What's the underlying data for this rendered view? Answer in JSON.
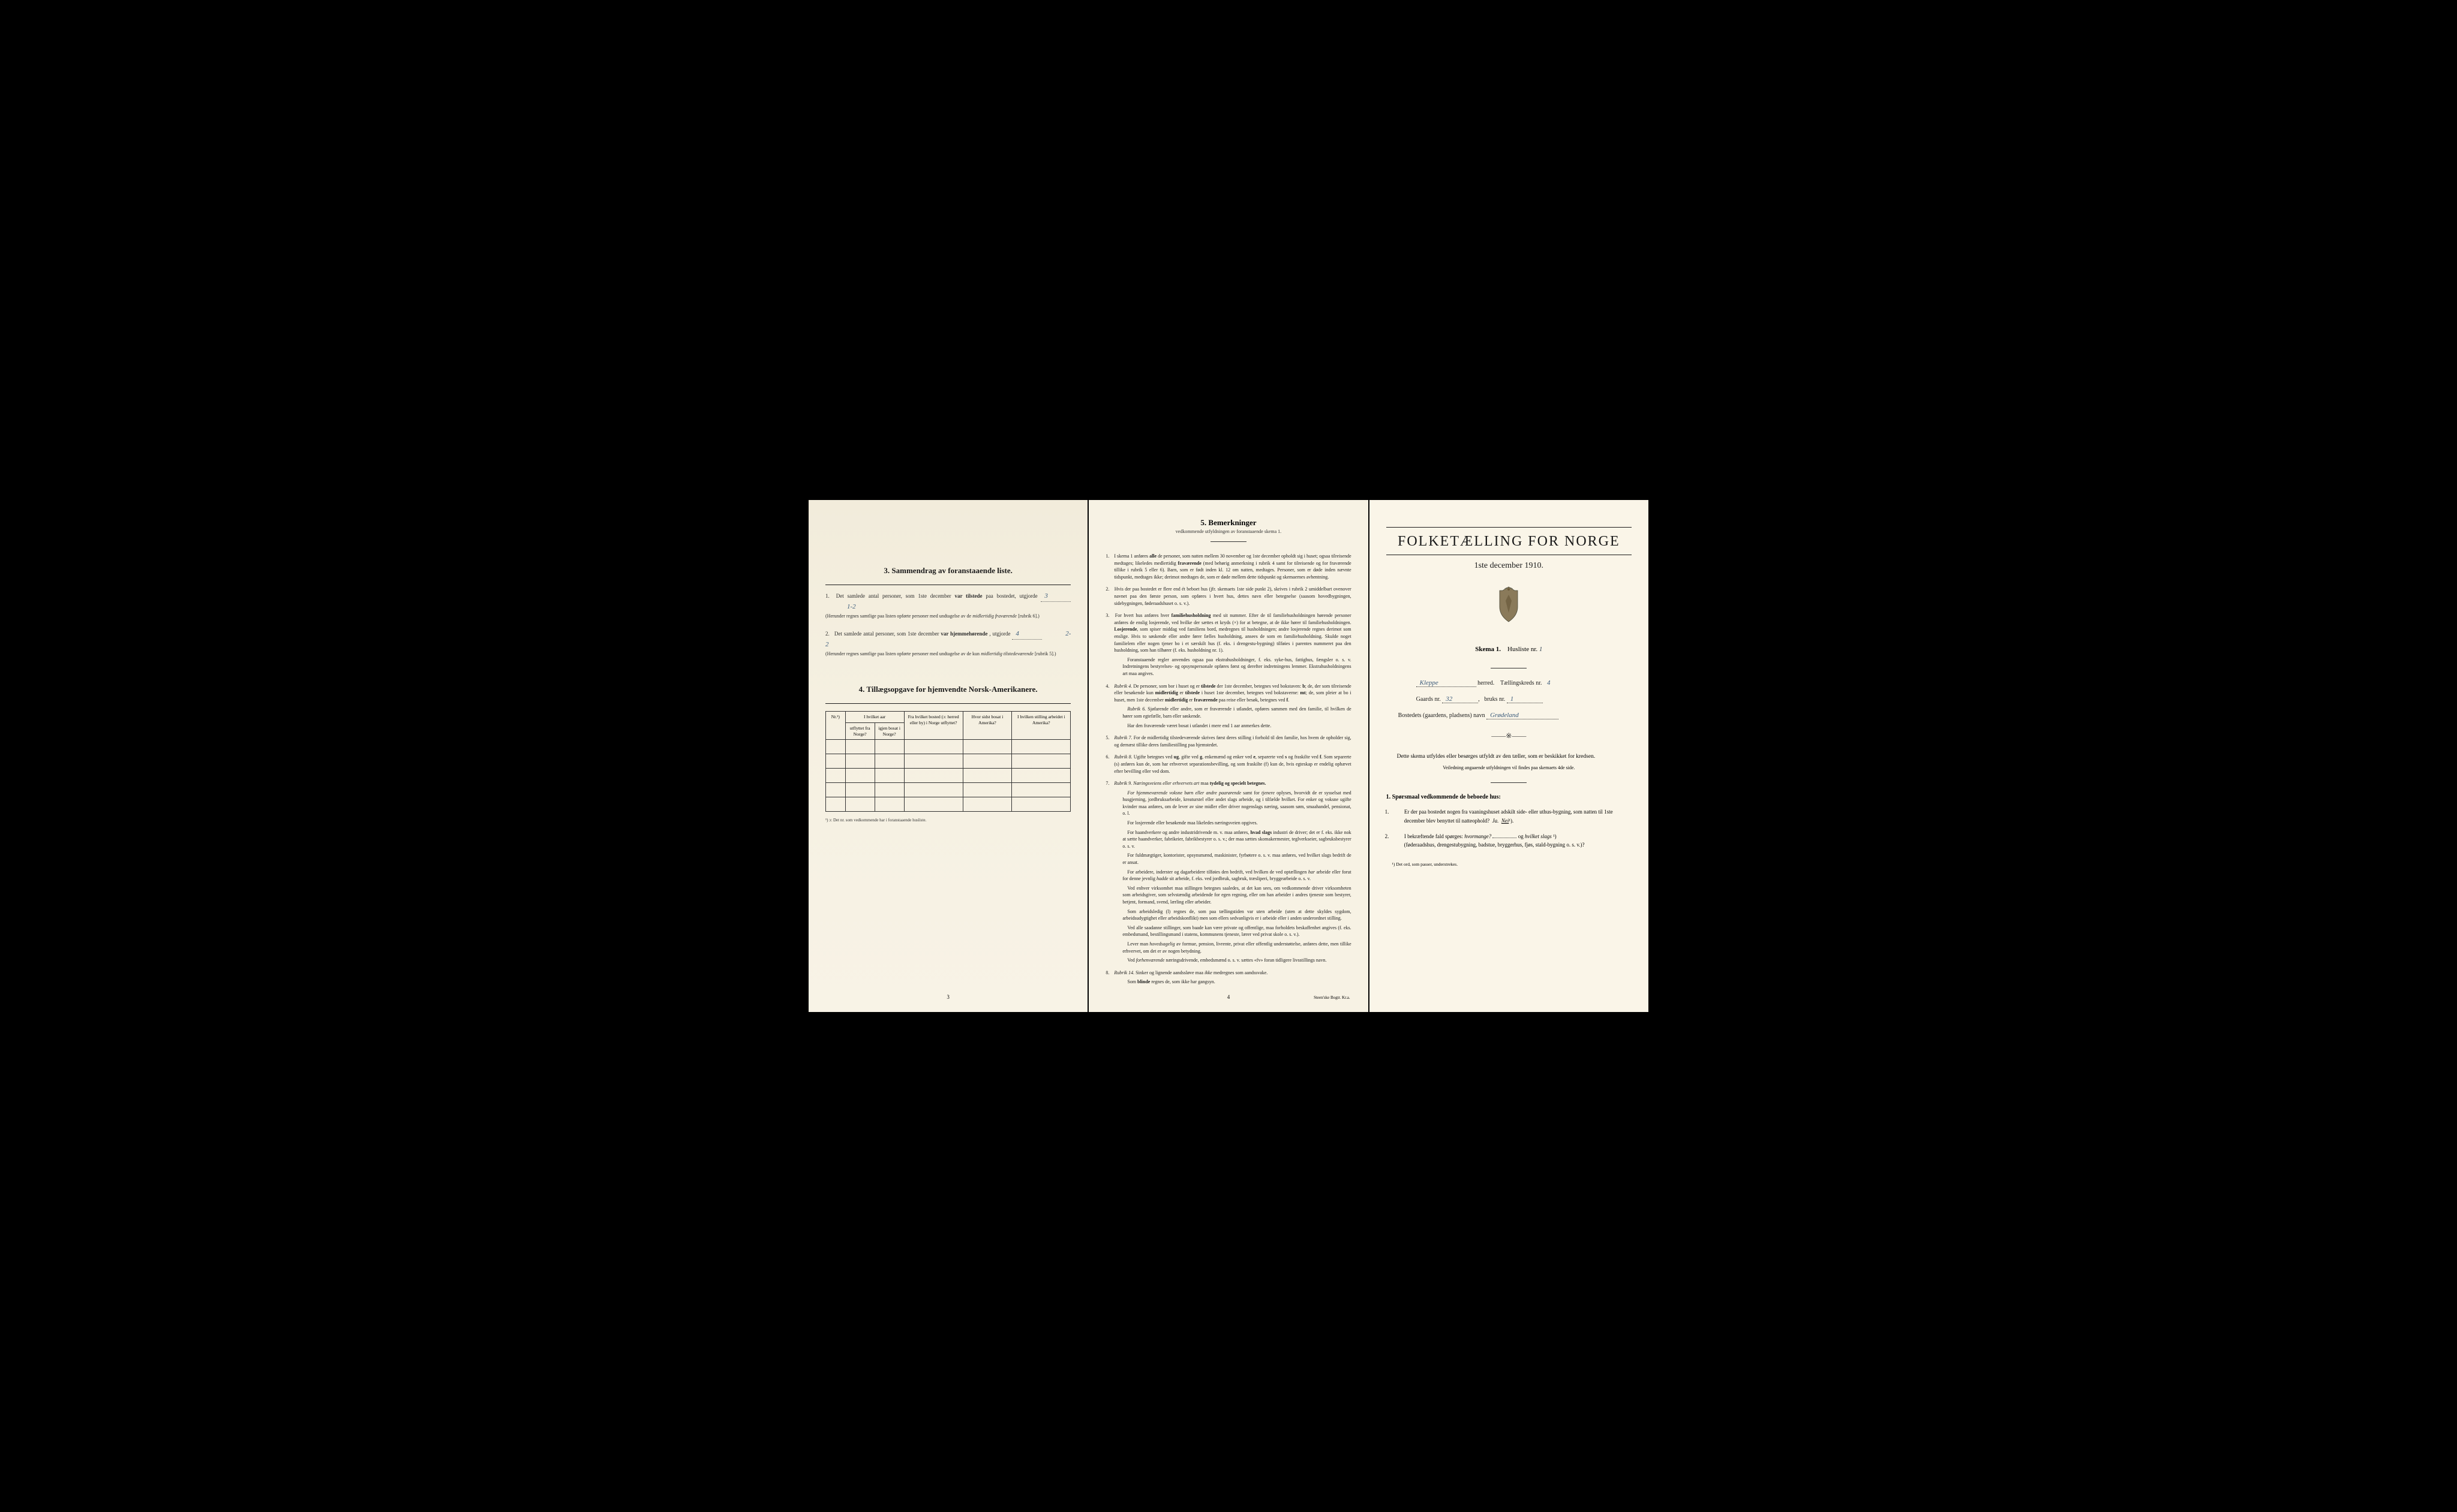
{
  "page1": {
    "section3": {
      "num": "3.",
      "title": "Sammendrag av foranstaaende liste.",
      "item1": {
        "num": "1.",
        "text_pre": "Det samlede antal personer, som 1ste december",
        "text_bold": "var tilstede",
        "text_post": "paa bostedet, utgjorde",
        "value": "3",
        "value2": "1-2",
        "note": "(Herunder regnes samtlige paa listen opførte personer med undtagelse av de",
        "note_italic": "midlertidig fraværende",
        "note_post": "[rubrik 6].)"
      },
      "item2": {
        "num": "2.",
        "text_pre": "Det samlede antal personer, som 1ste december",
        "text_bold": "var hjemmehørende",
        "text_post": ", utgjorde",
        "value": "4",
        "value2": "2-2",
        "note": "(Herunder regnes samtlige paa listen opførte personer med undtagelse av de kun",
        "note_italic": "midlertidig tilstedeværende",
        "note_post": "[rubrik 5].)"
      }
    },
    "section4": {
      "num": "4.",
      "title": "Tillægsopgave for hjemvendte Norsk-Amerikanere.",
      "table": {
        "headers": {
          "col1": "Nr.¹)",
          "col2_group": "I hvilket aar",
          "col2a": "utflyttet fra Norge?",
          "col2b": "igjen bosat i Norge?",
          "col3": "Fra hvilket bosted (ɔ: herred eller by) i Norge utflyttet?",
          "col4": "Hvor sidst bosat i Amerika?",
          "col5": "I hvilken stilling arbeidet i Amerika?"
        },
        "rows": 5
      },
      "footnote": "¹) ɔ: Det nr. som vedkommende har i foranstaaende husliste."
    },
    "page_num": "3"
  },
  "page2": {
    "title_num": "5.",
    "title": "Bemerkninger",
    "subtitle": "vedkommende utfyldningen av foranstaaende skema 1.",
    "items": [
      {
        "num": "1.",
        "text": "I skema 1 anføres <b>alle</b> de personer, som natten mellem 30 november og 1ste december opholdt sig i huset; ogsaa tilreisende medtages; likeledes medlertidig <b>fraværende</b> (med behørig anmerkning i rubrik 4 samt for tilreisende og for fraværende tillike i rubrik 5 eller 6). Barn, som er født inden kl. 12 om natten, medtages. Personer, som er døde inden nævnte tidspunkt, medtages ikke; derimot medtages de, som er døde mellem dette tidspunkt og skemaernes avhentning."
      },
      {
        "num": "2.",
        "text": "Hvis der paa bostedet er flere end ét beboet hus (jfr. skemaets 1ste side punkt 2), skrives i rubrik 2 umiddelbart ovenover navnet paa den første person, som opføres i hvert hus, dettes navn eller betegnelse (saasom hovedbygningen, sidebygningen, føderaadshuset o. s. v.)."
      },
      {
        "num": "3.",
        "text": "For hvert hus anføres hver <b>familiehusholdning</b> med sit nummer. Efter de til familiehusholdningen hørende personer anføres de enslig losjerende, ved hvilke der sættes et kryds (×) for at betegne, at de ikke hører til familiehusholdningen. <b>Losjerende</b>, som spiser middag ved familiens bord, medregnes til husholdningen; andre losjerende regnes derimot som enslige. Hvis to søskende eller andre fører fælles husholdning, ansees de som en familiehusholdning. Skulde noget familielem eller nogen tjener bo i et særskilt hus (f. eks. i drengestu-bygning) tilføies i parentes nummeret paa den husholdning, som han tilhører (f. eks. husholdning nr. 1).",
        "sub": "Foranstaaende regler anvendes ogsaa paa ekstrahusholdninger, f. eks. syke-hus, fattighus, fængsler o. s. v. Indretningens bestyrelses- og opsynspersonale opføres først og derefter indretningens lemmer. Ekstrahusholdningens art maa angives."
      },
      {
        "num": "4.",
        "text": "<i>Rubrik 4.</i> De personer, som bor i huset og er <b>tilstede</b> der 1ste december, betegnes ved bokstaven: <b>b</b>; de, der som tilreisende eller besøkende kun <b>midlertidig</b> er <b>tilstede</b> i huset 1ste december, betegnes ved bokstaverne: <b>mt</b>; de, som pleier at bo i huset, men 1ste december <b>midlertidig</b> er <b>fraværende</b> paa reise eller besøk, betegnes ved <b>f</b>.",
        "sub": "<i>Rubrik 6.</i> Sjøfarende eller andre, som er fraværende i utlandet, opføres sammen med den familie, til hvilken de hører som egtefælle, barn eller søskende.",
        "sub2": "Har den fraværende været bosat i utlandet i mere end 1 aar anmerkes dette."
      },
      {
        "num": "5.",
        "text": "<i>Rubrik 7.</i> For de midlertidig tilstedeværende skrives først deres stilling i forhold til den familie, hos hvem de opholder sig, og dernæst tillike deres familiestilling paa hjemstedet."
      },
      {
        "num": "6.",
        "text": "<i>Rubrik 8.</i> Ugifte betegnes ved <b>ug</b>, gifte ved <b>g</b>, enkemænd og enker ved <b>e</b>, separerte ved <b>s</b> og fraskilte ved <b>f</b>. Som separerte (s) anføres kun de, som har erhvervet separationsbevilling, og som fraskilte (f) kun de, hvis egteskap er endelig ophævet efter bevilling eller ved dom."
      },
      {
        "num": "7.",
        "text": "<i>Rubrik 9.</i> <i>Næringsveiens eller erhvervets art</i> maa <b>tydelig og specielt betegnes.</b>",
        "sub": "<i>For hjemmeværende voksne børn eller andre paarørende</i> samt for <i>tjenere</i> oplyses, hvorvidt de er sysselsat med husgjerning, jordbruksarbeide, kreaturstel eller andet slags arbeide, og i tilfælde hvilket. For enker og voksne ugifte kvinder maa anføres, om de lever av sine midler eller driver nogenslags næring, saasom søm, smaahandel, pensionat, o. l.",
        "sub2": "For losjerende eller besøkende maa likeledes næringsveien opgives.",
        "sub3": "For haandverkere og andre industridrivende m. v. maa anføres, <b>hvad slags</b> industri de driver; det er f. eks. ikke nok at sætte haandverker, fabrikeier, fabrikbestyrer o. s. v.; der maa sættes skomakermester, teglverkseier, sagbruksbestyrer o. s. v.",
        "sub4": "For fuldmægtiger, kontorister, opsynsmænd, maskinister, fyrbøtere o. s. v. maa anføres, ved hvilket slags bedrift de er ansat.",
        "sub5": "For arbeidere, inderster og dagarbeidere tilføies den bedrift, ved hvilken de ved optællingen <i>har</i> arbeide eller forut for denne jevnlig <i>hadde</i> sit arbeide, f. eks. ved jordbruk, sagbruk, træsliperi, bryggearbeide o. s. v.",
        "sub6": "Ved enhver virksomhet maa stillingen betegnes saaledes, at det kan sees, om vedkommende driver virksomheten som arbeidsgiver, som selvstændig arbeidende for egen regning, eller om han arbeider i andres tjeneste som bestyrer, betjent, formand, svend, lærling eller arbeider.",
        "sub7": "Som arbeidsledig (l) regnes de, som paa tællingstiden var uten arbeide (uten at dette skyldes sygdom, arbeidsudygtighet eller arbeidskonflikt) men som ellers sedvanligvis er i arbeide eller i anden underordnet stilling.",
        "sub8": "Ved alle saadanne stillinger, som baade kan være private og offentlige, maa forholdets beskaffenhet angives (f. eks. embedsmand, bestillingsmand i statens, kommunens tjeneste, lærer ved privat skole o. s. v.).",
        "sub9": "Lever man <i>hovedsagelig</i> av formue, pension, livrente, privat eller offentlig understøttelse, anføres dette, men tillike erhvervet, om det er av nogen betydning.",
        "sub10": "Ved <i>forhenværende</i> næringsdrivende, embedsmænd o. s. v. sættes «fv» foran tidligere livsstillings navn."
      },
      {
        "num": "8.",
        "text": "<i>Rubrik 14.</i> Sinker og lignende aandssløve maa <i>ikke</i> medregnes som aandssvake.",
        "sub": "Som <b>blinde</b> regnes de, som ikke har gangsyn."
      }
    ],
    "page_num": "4",
    "printer": "Steen'ske Bogtr. Kr.a."
  },
  "page3": {
    "main_title": "FOLKETÆLLING FOR NORGE",
    "date": "1ste december 1910.",
    "skema": "Skema 1.",
    "husliste": "Husliste nr.",
    "husliste_val": "1",
    "herred_val": "Kleppe",
    "herred_label": "herred.",
    "kreds_label": "Tællingskreds nr.",
    "kreds_val": "4",
    "gaards_label": "Gaards nr.",
    "gaards_val": "32",
    "bruks_label": "bruks nr.",
    "bruks_val": "1",
    "bosted_label": "Bostedets (gaardens, pladsens) navn",
    "bosted_val": "Grødeland",
    "instruction": "Dette skema utfyldes eller besørges utfyldt av den tæller, som er beskikket for kredsen.",
    "instruction_sub": "Veiledning angaaende utfyldningen vil findes paa skemaets 4de side.",
    "q_header": "1. Spørsmaal vedkommende de beboede hus:",
    "q1": {
      "num": "1.",
      "text": "Er der paa bostedet nogen fra vaaningshuset adskilt side- eller uthus-bygning, som natten til 1ste december blev benyttet til natteophold?",
      "ja": "Ja.",
      "nei": "Nei",
      "nei_sup": "¹)."
    },
    "q2": {
      "num": "2.",
      "text_pre": "I bekræftende fald spørges:",
      "text_italic": "hvormange?",
      "text_mid": "og",
      "text_italic2": "hvilket slags",
      "text_sup": "¹)",
      "text_post": "(føderaadshus, drengestubygning, badstue, bryggerhus, fjøs, stald-bygning o. s. v.)?"
    },
    "footnote": "¹) Det ord, som passer, understrekes."
  },
  "colors": {
    "paper": "#f5f0e1",
    "text": "#1a1a1a",
    "handwriting": "#3a5a7a",
    "border": "#333333"
  }
}
